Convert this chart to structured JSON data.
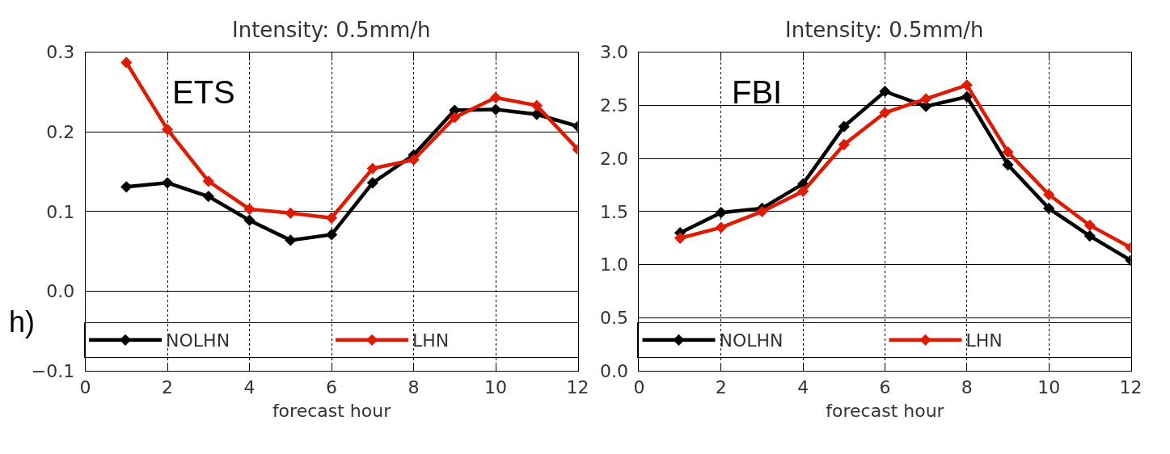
{
  "chart_data": [
    {
      "type": "line",
      "title": "Intensity: 0.5mm/h",
      "xlabel": "forecast hour",
      "x": [
        1,
        2,
        3,
        4,
        5,
        6,
        7,
        8,
        9,
        10,
        11,
        12
      ],
      "series": [
        {
          "name": "NOLHN",
          "color": "#000000",
          "values": [
            0.131,
            0.136,
            0.119,
            0.089,
            0.064,
            0.071,
            0.136,
            0.171,
            0.227,
            0.228,
            0.222,
            0.207
          ]
        },
        {
          "name": "LHN",
          "color": "#dd1c05",
          "values": [
            0.287,
            0.203,
            0.138,
            0.103,
            0.098,
            0.092,
            0.154,
            0.165,
            0.218,
            0.243,
            0.233,
            0.178
          ]
        }
      ],
      "xlim": [
        0,
        12
      ],
      "xticks": [
        0,
        2,
        4,
        6,
        8,
        10,
        12
      ],
      "ylim": [
        -0.1,
        0.3
      ],
      "yticks": [
        {
          "value": -0.1,
          "label": "−0.1"
        },
        {
          "value": 0,
          "label": "0.0"
        },
        0.1,
        0.2,
        0.3
      ],
      "grid": true,
      "legend": "bottom",
      "marker": "diamond",
      "line_style": "solid",
      "annotations": [
        "ETS",
        "h)"
      ]
    },
    {
      "type": "line",
      "title": "Intensity: 0.5mm/h",
      "xlabel": "forecast hour",
      "x": [
        1,
        2,
        3,
        4,
        5,
        6,
        7,
        8,
        9,
        10,
        11,
        12
      ],
      "series": [
        {
          "name": "NOLHN",
          "color": "#000000",
          "values": [
            1.3,
            1.49,
            1.53,
            1.76,
            2.3,
            2.63,
            2.49,
            2.58,
            1.94,
            1.53,
            1.27,
            1.04
          ]
        },
        {
          "name": "LHN",
          "color": "#dd1c05",
          "values": [
            1.25,
            1.35,
            1.5,
            1.69,
            2.13,
            2.43,
            2.56,
            2.69,
            2.06,
            1.66,
            1.37,
            1.16
          ]
        }
      ],
      "xlim": [
        0,
        12
      ],
      "xticks": [
        0,
        2,
        4,
        6,
        8,
        10,
        12
      ],
      "ylim": [
        0,
        3
      ],
      "yticks": [
        {
          "value": 0,
          "label": "0.0"
        },
        0.5,
        {
          "value": 1,
          "label": "1.0"
        },
        1.5,
        {
          "value": 2,
          "label": "2.0"
        },
        2.5,
        {
          "value": 3,
          "label": "3.0"
        }
      ],
      "grid": true,
      "legend": "bottom",
      "marker": "diamond",
      "line_style": "solid",
      "annotations": [
        "FBI"
      ]
    }
  ]
}
